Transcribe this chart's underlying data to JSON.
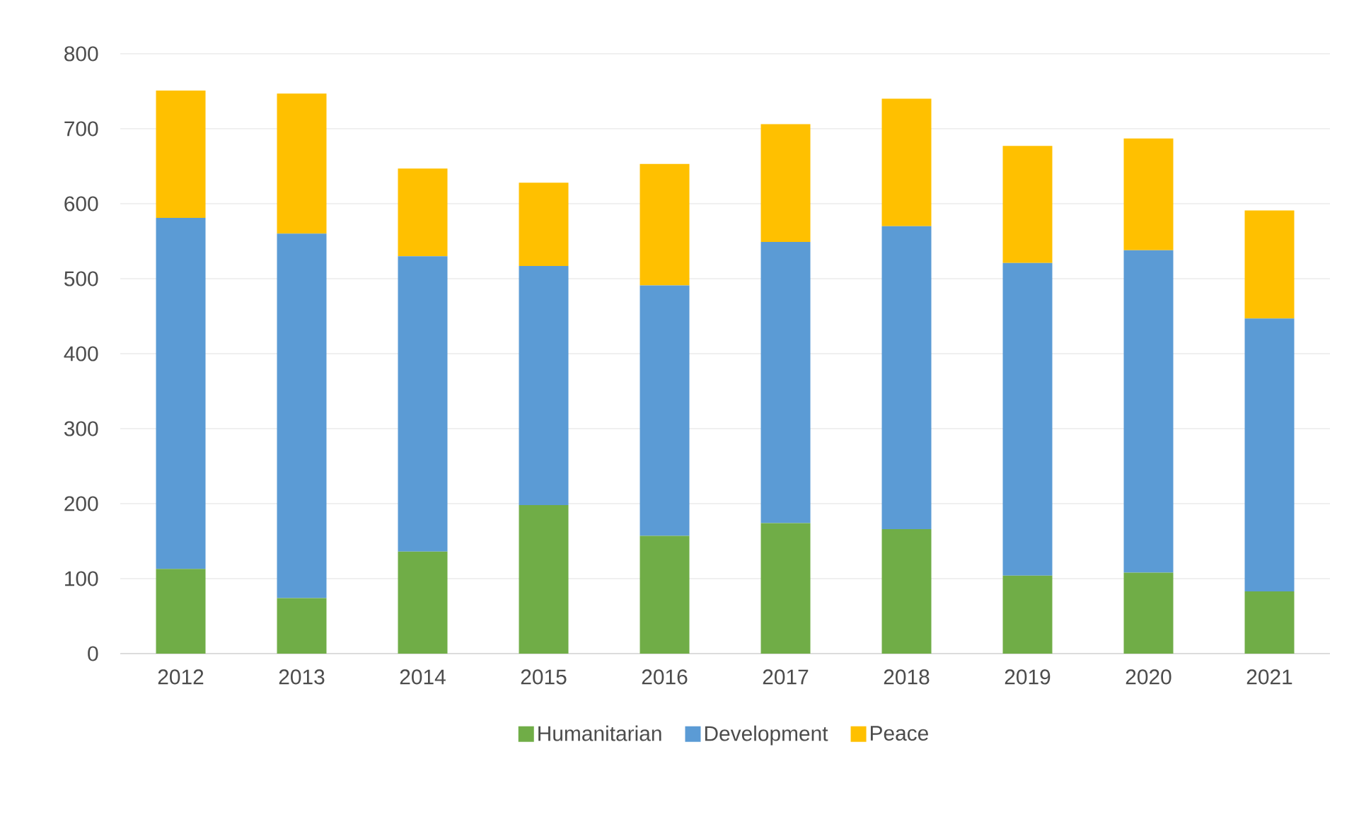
{
  "chart_data": {
    "type": "bar",
    "stacked": true,
    "categories": [
      "2012",
      "2013",
      "2014",
      "2015",
      "2016",
      "2017",
      "2018",
      "2019",
      "2020",
      "2021"
    ],
    "series": [
      {
        "name": "Humanitarian",
        "color": "#70ad47",
        "values": [
          113,
          74,
          136,
          198,
          157,
          174,
          166,
          104,
          108,
          83
        ]
      },
      {
        "name": "Development",
        "color": "#5b9bd5",
        "values": [
          468,
          486,
          394,
          319,
          334,
          375,
          404,
          417,
          430,
          364
        ]
      },
      {
        "name": "Peace",
        "color": "#ffc000",
        "values": [
          170,
          187,
          117,
          111,
          162,
          157,
          170,
          156,
          149,
          144
        ]
      }
    ],
    "ylim": [
      0,
      800
    ],
    "yticks": [
      0,
      100,
      200,
      300,
      400,
      500,
      600,
      700,
      800
    ],
    "grid": "y",
    "legend": "bottom"
  }
}
